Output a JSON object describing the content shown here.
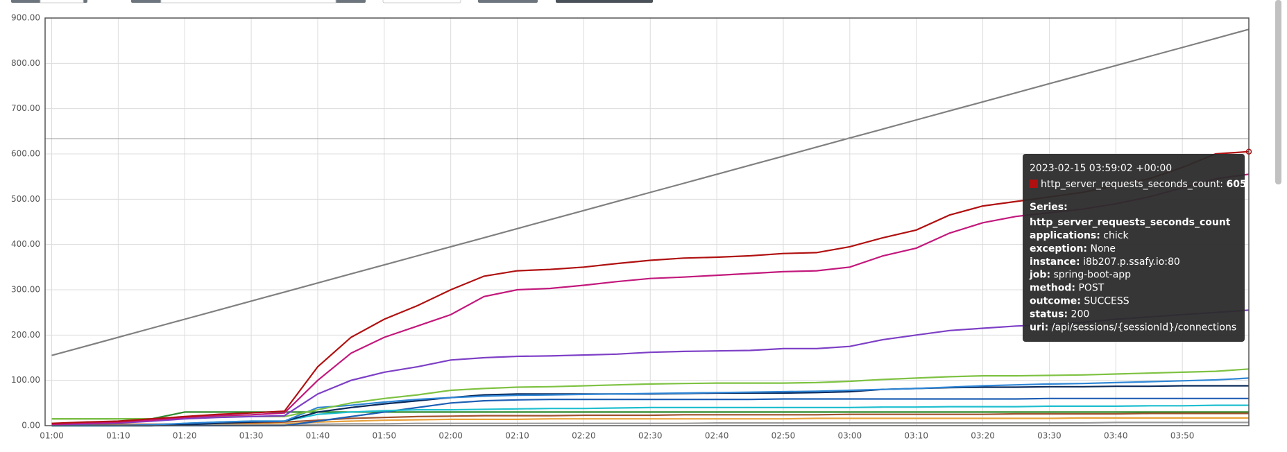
{
  "chart_data": {
    "type": "line",
    "categories": [
      "01:00",
      null,
      "01:10",
      null,
      "01:20",
      null,
      "01:30",
      null,
      "01:40",
      null,
      "01:50",
      null,
      "02:00",
      null,
      "02:10",
      null,
      "02:20",
      null,
      "02:30",
      null,
      "02:40",
      null,
      "02:50",
      null,
      "03:00",
      null,
      "03:10",
      null,
      "03:20",
      null,
      "03:30",
      null,
      "03:40",
      null,
      "03:50",
      null,
      null
    ],
    "ylim": [
      0,
      900
    ],
    "yticks": [
      {
        "value": 0,
        "label": "0.00"
      },
      {
        "value": 100,
        "label": "100.00"
      },
      {
        "value": 200,
        "label": "200.00"
      },
      {
        "value": 300,
        "label": "300.00"
      },
      {
        "value": 400,
        "label": "400.00"
      },
      {
        "value": 500,
        "label": "500.00"
      },
      {
        "value": 600,
        "label": "600.00"
      },
      {
        "value": 700,
        "label": "700.00"
      },
      {
        "value": 800,
        "label": "800.00"
      },
      {
        "value": 900,
        "label": "900.00"
      }
    ],
    "grid": true,
    "series": [
      {
        "color": "#808080",
        "values": [
          155,
          175,
          195,
          215,
          235,
          255,
          275,
          295,
          315,
          335,
          355,
          375,
          395,
          415,
          435,
          455,
          475,
          495,
          515,
          535,
          555,
          575,
          595,
          615,
          635,
          655,
          675,
          695,
          715,
          735,
          755,
          775,
          795,
          815,
          835,
          855,
          875
        ]
      },
      {
        "color": "#2c8a2c",
        "values": [
          15,
          15,
          15,
          15,
          30,
          30,
          30,
          30,
          30,
          30,
          30,
          30,
          30,
          30,
          30,
          30,
          30,
          30,
          30,
          30,
          30,
          30,
          30,
          30,
          30,
          30,
          30,
          30,
          30,
          30,
          30,
          30,
          30,
          30,
          30,
          30,
          30
        ]
      },
      {
        "color": "#a0522d",
        "values": [
          2,
          2,
          3,
          3,
          4,
          5,
          6,
          8,
          12,
          16,
          18,
          20,
          21,
          22,
          22,
          22,
          23,
          23,
          23,
          24,
          24,
          24,
          24,
          24,
          25,
          25,
          25,
          25,
          25,
          26,
          26,
          26,
          26,
          27,
          27,
          27,
          27
        ]
      },
      {
        "color": "#e8a23c",
        "values": [
          0,
          0,
          1,
          1,
          2,
          2,
          3,
          4,
          8,
          10,
          12,
          13,
          14,
          14,
          14,
          15,
          15,
          15,
          15,
          15,
          15,
          15,
          15,
          16,
          16,
          16,
          16,
          16,
          16,
          16,
          16,
          17,
          17,
          17,
          17,
          17,
          17
        ]
      },
      {
        "color": "#9c9c9c",
        "values": [
          0,
          0,
          0,
          0,
          1,
          1,
          1,
          2,
          3,
          4,
          4,
          5,
          5,
          5,
          5,
          5,
          5,
          5,
          5,
          5,
          6,
          6,
          6,
          6,
          6,
          6,
          6,
          6,
          6,
          6,
          6,
          6,
          7,
          7,
          7,
          7,
          7
        ]
      },
      {
        "color": "#1e5fb4",
        "values": [
          0,
          0,
          0,
          0,
          0,
          0,
          0,
          0,
          10,
          20,
          30,
          40,
          50,
          55,
          57,
          58,
          58,
          58,
          58,
          58,
          58,
          58,
          59,
          59,
          59,
          59,
          59,
          59,
          59,
          59,
          60,
          60,
          60,
          60,
          60,
          60,
          60
        ]
      },
      {
        "color": "#1fbfcf",
        "values": [
          0,
          0,
          0,
          0,
          5,
          8,
          10,
          10,
          25,
          30,
          33,
          35,
          35,
          36,
          37,
          38,
          38,
          39,
          40,
          40,
          40,
          40,
          40,
          40,
          40,
          41,
          41,
          42,
          42,
          42,
          43,
          43,
          43,
          44,
          44,
          45,
          45
        ]
      },
      {
        "color": "#0b2a5c",
        "values": [
          0,
          0,
          0,
          0,
          2,
          5,
          8,
          10,
          30,
          40,
          48,
          55,
          62,
          68,
          70,
          70,
          70,
          70,
          70,
          71,
          72,
          72,
          72,
          73,
          75,
          80,
          82,
          84,
          85,
          85,
          86,
          86,
          87,
          87,
          88,
          88,
          88
        ]
      },
      {
        "color": "#2f86d6",
        "values": [
          0,
          0,
          0,
          2,
          5,
          8,
          10,
          10,
          40,
          45,
          52,
          58,
          62,
          65,
          67,
          68,
          69,
          70,
          71,
          72,
          73,
          74,
          75,
          76,
          78,
          80,
          82,
          85,
          88,
          90,
          92,
          93,
          95,
          97,
          99,
          101,
          105
        ]
      },
      {
        "color": "#7ec242",
        "values": [
          15,
          15,
          15,
          15,
          18,
          20,
          20,
          20,
          35,
          50,
          60,
          68,
          78,
          82,
          85,
          86,
          88,
          90,
          92,
          93,
          94,
          94,
          94,
          95,
          98,
          102,
          105,
          108,
          110,
          110,
          111,
          112,
          114,
          116,
          118,
          120,
          125
        ]
      },
      {
        "color": "#7d3fc6",
        "values": [
          2,
          4,
          6,
          10,
          15,
          18,
          20,
          22,
          70,
          100,
          118,
          130,
          145,
          150,
          153,
          154,
          156,
          158,
          162,
          164,
          165,
          166,
          170,
          170,
          175,
          190,
          200,
          210,
          215,
          220,
          223,
          228,
          235,
          240,
          245,
          250,
          255
        ]
      },
      {
        "color": "#c2187c",
        "values": [
          3,
          5,
          8,
          12,
          18,
          22,
          24,
          28,
          100,
          160,
          195,
          220,
          245,
          285,
          300,
          303,
          310,
          318,
          325,
          328,
          332,
          336,
          340,
          342,
          350,
          375,
          392,
          425,
          448,
          462,
          470,
          478,
          490,
          505,
          525,
          545,
          555
        ]
      },
      {
        "color": "#b01010",
        "values": [
          5,
          8,
          10,
          15,
          20,
          25,
          28,
          32,
          130,
          195,
          235,
          265,
          300,
          330,
          342,
          345,
          350,
          358,
          365,
          370,
          372,
          375,
          380,
          382,
          395,
          415,
          432,
          465,
          485,
          495,
          505,
          515,
          530,
          545,
          570,
          600,
          605
        ]
      }
    ]
  },
  "tooltip": {
    "time": "2023-02-15 03:59:02 +00:00",
    "color": "#b01010",
    "metric": "http_server_requests_seconds_count:",
    "value": 605,
    "heading": "Series:",
    "series_name": "http_server_requests_seconds_count",
    "labels": [
      {
        "key": "applications:",
        "value": "chick"
      },
      {
        "key": "exception:",
        "value": "None"
      },
      {
        "key": "instance:",
        "value": "i8b207.p.ssafy.io:80"
      },
      {
        "key": "job:",
        "value": "spring-boot-app"
      },
      {
        "key": "method:",
        "value": "POST"
      },
      {
        "key": "outcome:",
        "value": "SUCCESS"
      },
      {
        "key": "status:",
        "value": "200"
      },
      {
        "key": "uri:",
        "value": "/api/sessions/{sessionId}/connections"
      }
    ]
  }
}
